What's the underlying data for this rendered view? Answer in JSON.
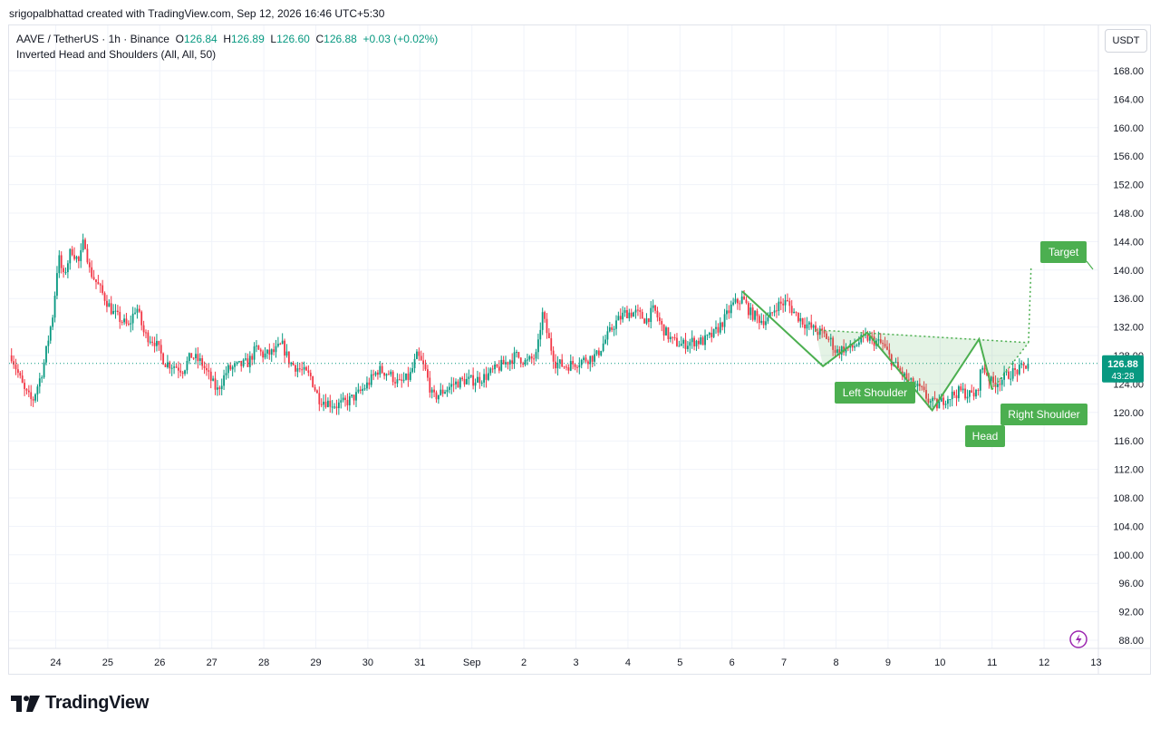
{
  "header": {
    "credit": "srigopalbhattad created with TradingView.com, Sep 12, 2026 16:46 UTC+5:30"
  },
  "legend": {
    "symbol": "AAVE / TetherUS · 1h · Binance",
    "o_label": "O",
    "o_value": "126.84",
    "h_label": "H",
    "h_value": "126.89",
    "l_label": "L",
    "l_value": "126.60",
    "c_label": "C",
    "c_value": "126.88",
    "change": "+0.03 (+0.02%)",
    "indicator": "Inverted Head and Shoulders (All, All, 50)"
  },
  "currency_button": "USDT",
  "price_badge": {
    "price": "126.88",
    "countdown": "43:28"
  },
  "brand": {
    "name": "TradingView"
  },
  "colors": {
    "up": "#089981",
    "down": "#f23645",
    "pattern": "#4caf50",
    "grid": "#f0f3fa"
  },
  "chart_data": {
    "type": "candlestick",
    "symbol": "AAVE / TetherUS",
    "interval": "1h",
    "exchange": "Binance",
    "y_range": [
      87,
      174
    ],
    "y_ticks": [
      88,
      92,
      96,
      100,
      104,
      108,
      112,
      116,
      120,
      124,
      128,
      132,
      136,
      140,
      144,
      148,
      152,
      156,
      160,
      164,
      168
    ],
    "y_tick_labels": [
      "88.00",
      "92.00",
      "96.00",
      "100.00",
      "104.00",
      "108.00",
      "112.00",
      "116.00",
      "120.00",
      "124.00",
      "128.00",
      "132.00",
      "136.00",
      "140.00",
      "144.00",
      "148.00",
      "152.00",
      "156.00",
      "160.00",
      "164.00",
      "168.00"
    ],
    "x_range": [
      23.15,
      44.0
    ],
    "x_ticks": [
      24,
      25,
      26,
      27,
      28,
      29,
      30,
      31,
      32,
      33,
      34,
      35,
      36,
      37,
      38,
      39,
      40,
      41,
      42,
      43
    ],
    "x_tick_labels": [
      "24",
      "25",
      "26",
      "27",
      "28",
      "29",
      "30",
      "31",
      "Sep",
      "2",
      "3",
      "4",
      "5",
      "6",
      "7",
      "8",
      "9",
      "10",
      "11",
      "12"
    ],
    "x_extra_tick": {
      "x": 44,
      "label": "13"
    },
    "price_path": [
      [
        23.15,
        128
      ],
      [
        23.4,
        123
      ],
      [
        23.55,
        121.5
      ],
      [
        23.75,
        126
      ],
      [
        23.95,
        134
      ],
      [
        24.05,
        142
      ],
      [
        24.15,
        139
      ],
      [
        24.3,
        143
      ],
      [
        24.45,
        141
      ],
      [
        24.55,
        144.5
      ],
      [
        24.65,
        140
      ],
      [
        24.8,
        138
      ],
      [
        24.95,
        136
      ],
      [
        25.1,
        134
      ],
      [
        25.25,
        133
      ],
      [
        25.4,
        132
      ],
      [
        25.55,
        135
      ],
      [
        25.7,
        131
      ],
      [
        25.9,
        130
      ],
      [
        26.1,
        127
      ],
      [
        26.3,
        126.5
      ],
      [
        26.45,
        126
      ],
      [
        26.6,
        128
      ],
      [
        26.8,
        127
      ],
      [
        26.95,
        125
      ],
      [
        27.1,
        123
      ],
      [
        27.3,
        126
      ],
      [
        27.5,
        126.5
      ],
      [
        27.7,
        127
      ],
      [
        27.85,
        129
      ],
      [
        28.0,
        128
      ],
      [
        28.2,
        128.5
      ],
      [
        28.35,
        129.5
      ],
      [
        28.5,
        127
      ],
      [
        28.7,
        126
      ],
      [
        28.9,
        125
      ],
      [
        29.05,
        122
      ],
      [
        29.2,
        121.5
      ],
      [
        29.4,
        121
      ],
      [
        29.6,
        121.5
      ],
      [
        29.8,
        122.5
      ],
      [
        30.0,
        124
      ],
      [
        30.2,
        126
      ],
      [
        30.4,
        125.5
      ],
      [
        30.6,
        124
      ],
      [
        30.8,
        125
      ],
      [
        30.95,
        128
      ],
      [
        31.1,
        126
      ],
      [
        31.25,
        122
      ],
      [
        31.45,
        123
      ],
      [
        31.65,
        124
      ],
      [
        31.85,
        124.5
      ],
      [
        32.05,
        124.5
      ],
      [
        32.25,
        125
      ],
      [
        32.45,
        126
      ],
      [
        32.65,
        127
      ],
      [
        32.85,
        128
      ],
      [
        33.05,
        127
      ],
      [
        33.25,
        128
      ],
      [
        33.35,
        134
      ],
      [
        33.45,
        131
      ],
      [
        33.6,
        127
      ],
      [
        33.8,
        126.5
      ],
      [
        34.0,
        127
      ],
      [
        34.2,
        127.5
      ],
      [
        34.4,
        128
      ],
      [
        34.55,
        130
      ],
      [
        34.75,
        132.5
      ],
      [
        34.95,
        134
      ],
      [
        35.15,
        134
      ],
      [
        35.35,
        133
      ],
      [
        35.5,
        134.5
      ],
      [
        35.65,
        132
      ],
      [
        35.85,
        130
      ],
      [
        36.05,
        129.5
      ],
      [
        36.25,
        130
      ],
      [
        36.45,
        130
      ],
      [
        36.65,
        131
      ],
      [
        36.85,
        133
      ],
      [
        37.0,
        135
      ],
      [
        37.2,
        136
      ],
      [
        37.35,
        134
      ],
      [
        37.55,
        133
      ],
      [
        37.7,
        133
      ],
      [
        37.85,
        135
      ],
      [
        38.05,
        135.5
      ],
      [
        38.2,
        134
      ],
      [
        38.4,
        132.5
      ],
      [
        38.6,
        131.5
      ],
      [
        38.75,
        131
      ],
      [
        38.9,
        130
      ],
      [
        39.0,
        128.5
      ],
      [
        39.15,
        129
      ],
      [
        39.3,
        129
      ],
      [
        39.45,
        130
      ],
      [
        39.6,
        130.5
      ],
      [
        39.75,
        130
      ],
      [
        39.9,
        129.5
      ],
      [
        40.05,
        127.5
      ],
      [
        40.25,
        125.5
      ],
      [
        40.45,
        124
      ],
      [
        40.65,
        123
      ],
      [
        40.8,
        121.5
      ],
      [
        40.95,
        121
      ],
      [
        41.1,
        122
      ],
      [
        41.25,
        122.5
      ],
      [
        41.4,
        123
      ],
      [
        41.55,
        122.5
      ],
      [
        41.7,
        122.5
      ],
      [
        41.8,
        126.5
      ],
      [
        41.9,
        125.5
      ],
      [
        42.0,
        124
      ],
      [
        42.15,
        124.5
      ],
      [
        42.35,
        125.5
      ],
      [
        42.55,
        126
      ],
      [
        42.7,
        126.88
      ]
    ],
    "last_price": 126.88,
    "pattern": {
      "name": "Inverted Head and Shoulders",
      "points": [
        [
          37.2,
          137
        ],
        [
          38.75,
          126.5
        ],
        [
          39.6,
          131.2
        ],
        [
          40.85,
          120.3
        ],
        [
          41.75,
          130.3
        ],
        [
          42.0,
          123.2
        ],
        [
          42.7,
          129.8
        ]
      ],
      "neckline": [
        [
          38.6,
          131.6
        ],
        [
          42.7,
          129.8
        ]
      ],
      "target_line": [
        [
          42.7,
          129.8
        ],
        [
          42.75,
          140.5
        ]
      ],
      "labels": [
        {
          "text": "Left Shoulder"
        },
        {
          "text": "Head"
        },
        {
          "text": "Right Shoulder"
        },
        {
          "text": "Target"
        }
      ]
    }
  }
}
